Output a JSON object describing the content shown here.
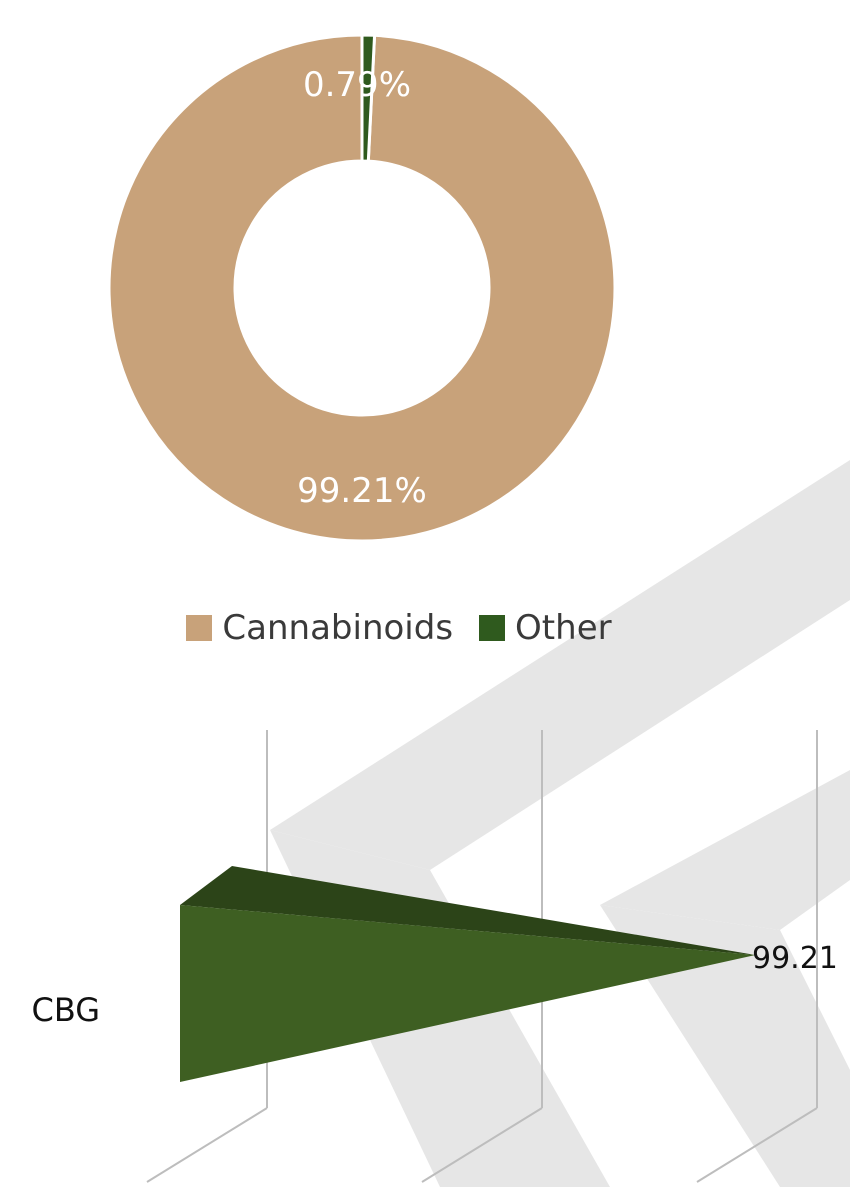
{
  "chart_data": [
    {
      "type": "pie",
      "labels": [
        "Cannabinoids",
        "Other"
      ],
      "values": [
        99.21,
        0.79
      ],
      "value_labels": [
        "99.21%",
        "0.79%"
      ],
      "colors": [
        "#c8a27a",
        "#2f5a1e"
      ],
      "legend_position": "bottom"
    },
    {
      "type": "bar",
      "orientation": "horizontal",
      "categories": [
        "CBG"
      ],
      "values": [
        99.21
      ],
      "value_labels": [
        "99.21"
      ],
      "colors": [
        "#3e5f22"
      ],
      "xlim": [
        0,
        100
      ],
      "grid": true
    }
  ]
}
